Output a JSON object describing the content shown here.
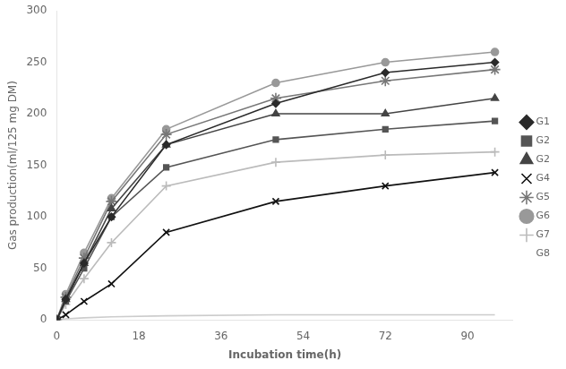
{
  "chart_data": {
    "type": "line",
    "x": [
      0,
      2,
      6,
      12,
      24,
      48,
      72,
      96
    ],
    "series": [
      {
        "name": "G1",
        "color": "#2a2a2a",
        "marker": "diamond",
        "values": [
          0,
          20,
          55,
          100,
          170,
          210,
          240,
          250
        ]
      },
      {
        "name": "G2",
        "color": "#555555",
        "marker": "square",
        "values": [
          0,
          18,
          50,
          100,
          148,
          175,
          185,
          193
        ]
      },
      {
        "name": "G2",
        "color": "#444444",
        "marker": "triangle",
        "values": [
          0,
          20,
          55,
          108,
          170,
          200,
          200,
          215
        ]
      },
      {
        "name": "G4",
        "color": "#111111",
        "marker": "x",
        "values": [
          0,
          5,
          18,
          35,
          85,
          115,
          130,
          143
        ]
      },
      {
        "name": "G5",
        "color": "#777777",
        "marker": "star",
        "values": [
          0,
          22,
          60,
          115,
          180,
          215,
          232,
          243
        ]
      },
      {
        "name": "G6",
        "color": "#999999",
        "marker": "circle",
        "values": [
          0,
          25,
          65,
          118,
          185,
          230,
          250,
          260
        ]
      },
      {
        "name": "G7",
        "color": "#bbbbbb",
        "marker": "plus",
        "values": [
          0,
          15,
          40,
          75,
          130,
          153,
          160,
          163
        ]
      },
      {
        "name": "G8",
        "color": "#cccccc",
        "marker": "none",
        "values": [
          0,
          1,
          2,
          3,
          4,
          5,
          5,
          5
        ]
      }
    ],
    "xlabel": "Incubation time(h)",
    "ylabel": "Gas production(ml/125 mg DM)",
    "xlim": [
      0,
      100
    ],
    "ylim": [
      0,
      300
    ],
    "xticks": [
      0,
      18,
      36,
      54,
      72,
      90
    ],
    "yticks": [
      0,
      50,
      100,
      150,
      200,
      250,
      300
    ],
    "grid": false,
    "legend": "right"
  }
}
